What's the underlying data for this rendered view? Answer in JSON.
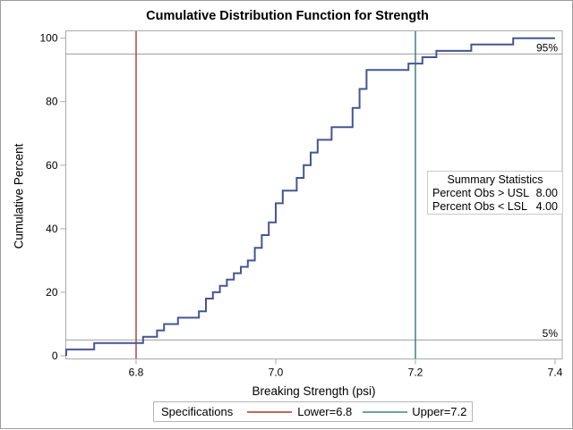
{
  "page_title": "Cumulative Distribution Function for Strength",
  "chart_data": {
    "type": "step",
    "title": "Cumulative Distribution Function for Strength",
    "xlabel": "Breaking Strength (psi)",
    "ylabel": "Cumulative Percent",
    "xlim": [
      6.7,
      7.41
    ],
    "ylim": [
      0,
      100
    ],
    "xticks": [
      6.8,
      7.0,
      7.2,
      7.4
    ],
    "yticks": [
      0,
      20,
      40,
      60,
      80,
      100
    ],
    "n_obs": 50,
    "curve_start": 6.7,
    "curve_end": 7.4,
    "steps": [
      [
        6.7,
        2
      ],
      [
        6.74,
        4
      ],
      [
        6.81,
        6
      ],
      [
        6.83,
        8
      ],
      [
        6.84,
        10
      ],
      [
        6.86,
        12
      ],
      [
        6.89,
        14
      ],
      [
        6.9,
        18
      ],
      [
        6.91,
        20
      ],
      [
        6.92,
        22
      ],
      [
        6.93,
        24
      ],
      [
        6.94,
        26
      ],
      [
        6.95,
        28
      ],
      [
        6.96,
        30
      ],
      [
        6.97,
        34
      ],
      [
        6.98,
        38
      ],
      [
        6.99,
        42
      ],
      [
        7.0,
        48
      ],
      [
        7.01,
        52
      ],
      [
        7.03,
        56
      ],
      [
        7.04,
        60
      ],
      [
        7.05,
        64
      ],
      [
        7.06,
        68
      ],
      [
        7.08,
        72
      ],
      [
        7.11,
        78
      ],
      [
        7.12,
        84
      ],
      [
        7.13,
        90
      ],
      [
        7.19,
        92
      ],
      [
        7.21,
        94
      ],
      [
        7.23,
        96
      ],
      [
        7.28,
        98
      ],
      [
        7.34,
        100
      ]
    ],
    "reference_lines": [
      {
        "axis": "x",
        "value": 6.8,
        "label": "Lower=6.8",
        "color": "#AE4A3F"
      },
      {
        "axis": "x",
        "value": 7.2,
        "label": "Upper=7.2",
        "color": "#3D837A"
      }
    ],
    "percentile_lines": [
      {
        "percent": 95,
        "label": "95%"
      },
      {
        "percent": 5,
        "label": "5%"
      }
    ],
    "colors": {
      "step_line": "#445694",
      "frame": "#a9a9a9",
      "percentile_line": "#9b9b9b",
      "tick_text": "#000000"
    },
    "legend_position": "bottom",
    "grid": false
  },
  "summary_box": {
    "title": "Summary Statistics",
    "rows": [
      {
        "label": "Percent Obs > USL",
        "value": "8.00"
      },
      {
        "label": "Percent Obs < LSL",
        "value": "4.00"
      }
    ]
  },
  "legend": {
    "title": "Specifications",
    "entries": [
      {
        "label": "Lower=6.8",
        "color": "#BB6A5E"
      },
      {
        "label": "Upper=7.2",
        "color": "#6FA49D"
      }
    ]
  }
}
